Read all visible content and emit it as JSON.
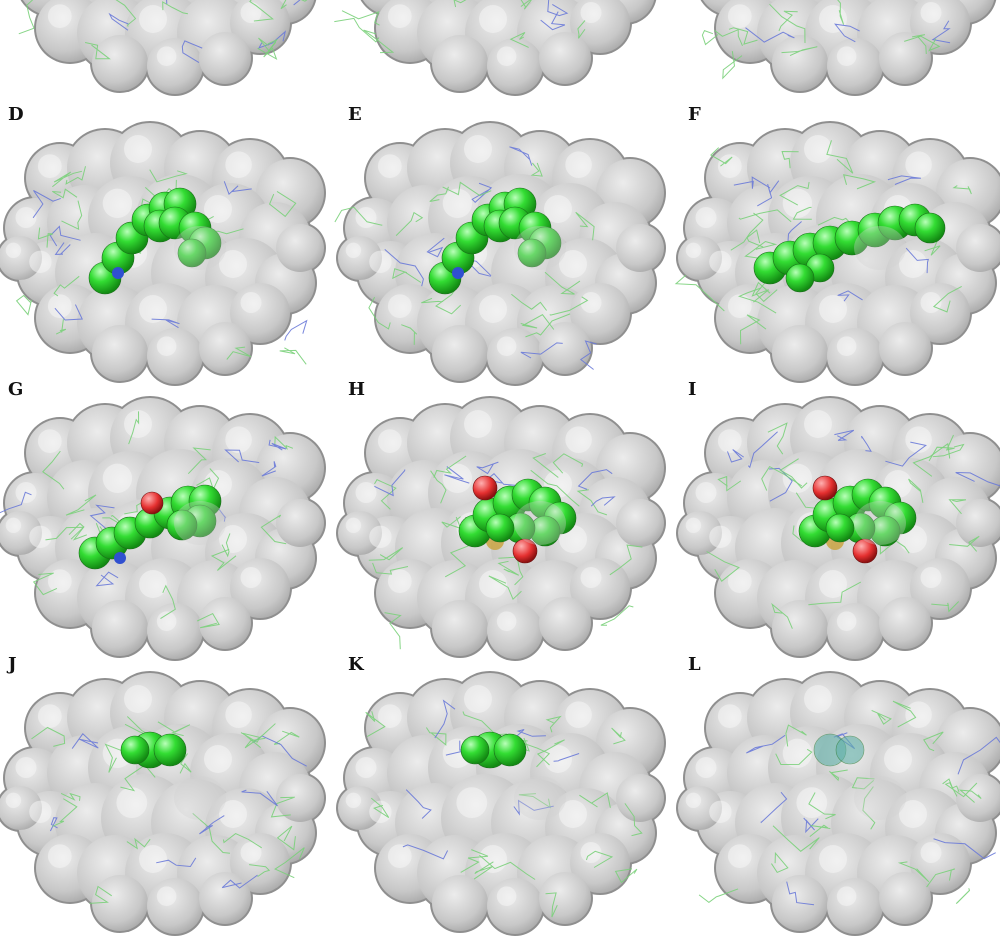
{
  "panels": [
    {
      "label": "",
      "ligand": "none"
    },
    {
      "label": "",
      "ligand": "hidden"
    },
    {
      "label": "",
      "ligand": "none"
    },
    {
      "label": "D",
      "ligand": "green-chain-bent"
    },
    {
      "label": "E",
      "ligand": "green-chain-bent"
    },
    {
      "label": "F",
      "ligand": "green-chain-straight"
    },
    {
      "label": "G",
      "ligand": "green-chain-with-oxygen"
    },
    {
      "label": "H",
      "ligand": "green-cluster-with-oxygen-sulfur"
    },
    {
      "label": "I",
      "ligand": "green-cluster-with-oxygen-sulfur"
    },
    {
      "label": "J",
      "ligand": "partial"
    },
    {
      "label": "K",
      "ligand": "partial"
    },
    {
      "label": "L",
      "ligand": "partial-teal"
    }
  ],
  "colors": {
    "background": "#ffffff",
    "surface": "#c8c8c8",
    "carbon": "#33dd33",
    "oxygen": "#e53030",
    "nitrogen": "#3050d0",
    "sulfur": "#c9a13a",
    "wire_green": "#7ad07a",
    "wire_blue": "#6a7ad8"
  }
}
